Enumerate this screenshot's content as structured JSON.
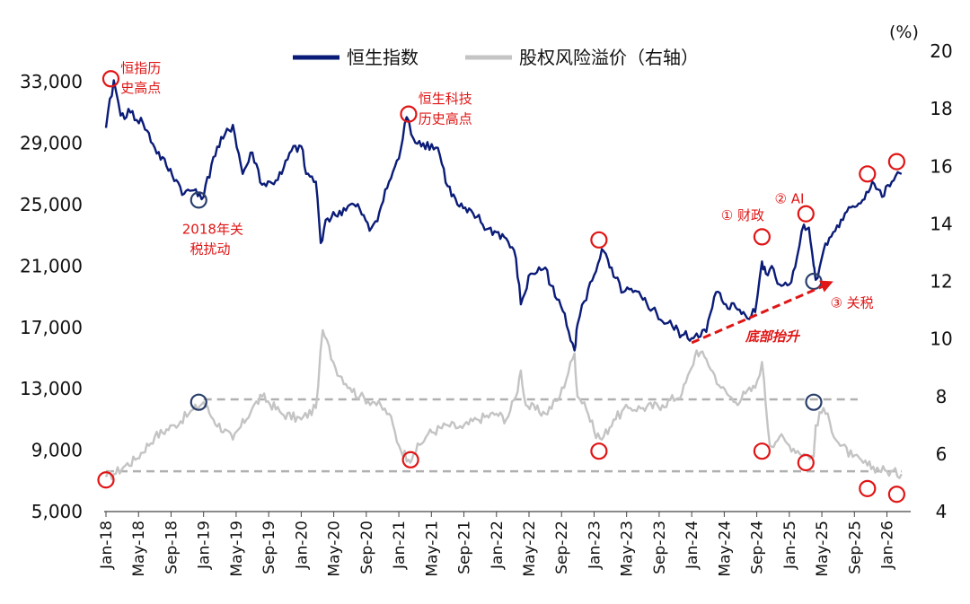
{
  "chart_data": {
    "type": "line",
    "legend": {
      "placement": "top-center"
    },
    "y_left": {
      "ylim": [
        5000,
        35000
      ],
      "ticks": [
        "33,000",
        "29,000",
        "25,000",
        "21,000",
        "17,000",
        "13,000",
        "9,000",
        "5,000"
      ]
    },
    "y_right": {
      "unit_label": "(%)",
      "ylim": [
        4,
        20
      ],
      "ticks": [
        "20",
        "18",
        "16",
        "14",
        "12",
        "10",
        "8",
        "6",
        "4"
      ]
    },
    "x_ticks": [
      "Jan-18",
      "May-18",
      "Sep-18",
      "Jan-19",
      "May-19",
      "Sep-19",
      "Jan-20",
      "May-20",
      "Sep-20",
      "Jan-21",
      "May-21",
      "Sep-21",
      "Jan-22",
      "May-22",
      "Sep-22",
      "Jan-23",
      "May-23",
      "Sep-23",
      "Jan-24",
      "May-24",
      "Sep-24",
      "Jan-25",
      "May-25",
      "Sep-25",
      "Jan-26"
    ],
    "series": [
      {
        "name": "恒生指数",
        "axis": "left",
        "color": "#0b1c78",
        "x": [
          2018.0,
          2018.08,
          2018.15,
          2018.25,
          2018.38,
          2018.5,
          2018.62,
          2018.72,
          2018.8,
          2018.92,
          2019.0,
          2019.1,
          2019.2,
          2019.3,
          2019.4,
          2019.5,
          2019.6,
          2019.7,
          2019.8,
          2019.9,
          2020.0,
          2020.05,
          2020.15,
          2020.2,
          2020.25,
          2020.35,
          2020.5,
          2020.6,
          2020.7,
          2020.8,
          2020.9,
          2021.0,
          2021.08,
          2021.15,
          2021.25,
          2021.4,
          2021.5,
          2021.6,
          2021.7,
          2021.8,
          2021.9,
          2022.0,
          2022.1,
          2022.2,
          2022.25,
          2022.35,
          2022.5,
          2022.6,
          2022.7,
          2022.8,
          2022.83,
          2022.9,
          2023.0,
          2023.08,
          2023.2,
          2023.3,
          2023.4,
          2023.5,
          2023.6,
          2023.7,
          2023.8,
          2023.9,
          2024.0,
          2024.05,
          2024.15,
          2024.25,
          2024.35,
          2024.45,
          2024.55,
          2024.65,
          2024.72,
          2024.76,
          2024.82,
          2024.9,
          2025.0,
          2025.08,
          2025.15,
          2025.2,
          2025.25,
          2025.27,
          2025.35,
          2025.45,
          2025.55,
          2025.65,
          2025.75,
          2025.85,
          2025.95,
          2026.05,
          2026.15
        ],
        "values": [
          30000,
          33100,
          30800,
          31000,
          30300,
          28700,
          27500,
          26600,
          25700,
          26000,
          25500,
          28100,
          29300,
          30200,
          27000,
          28400,
          26300,
          26400,
          27000,
          28500,
          28800,
          27000,
          26500,
          22500,
          24000,
          24300,
          25000,
          24700,
          23300,
          24500,
          26500,
          28000,
          30700,
          29300,
          29000,
          28700,
          26200,
          25000,
          24500,
          24200,
          23400,
          23200,
          22800,
          21500,
          18500,
          20500,
          20900,
          19000,
          17900,
          15500,
          17200,
          18700,
          20400,
          22100,
          20300,
          19300,
          19300,
          18800,
          18200,
          17400,
          17100,
          16500,
          16300,
          16600,
          16700,
          19300,
          18500,
          18300,
          17800,
          18000,
          21300,
          20500,
          21000,
          19800,
          19800,
          21600,
          23700,
          23500,
          21000,
          20100,
          22000,
          23200,
          24000,
          24900,
          25300,
          26500,
          25500,
          26500,
          27000
        ]
      },
      {
        "name": "股权风险溢价（右轴）",
        "axis": "right",
        "color": "#c4c4c4",
        "x": [
          2018.0,
          2018.08,
          2018.2,
          2018.3,
          2018.5,
          2018.7,
          2018.85,
          2019.0,
          2019.1,
          2019.3,
          2019.5,
          2019.6,
          2019.8,
          2020.0,
          2020.15,
          2020.22,
          2020.35,
          2020.5,
          2020.6,
          2020.75,
          2020.9,
          2021.0,
          2021.1,
          2021.15,
          2021.3,
          2021.5,
          2021.65,
          2021.8,
          2022.0,
          2022.1,
          2022.2,
          2022.25,
          2022.3,
          2022.5,
          2022.65,
          2022.8,
          2022.83,
          2022.9,
          2023.0,
          2023.08,
          2023.2,
          2023.35,
          2023.5,
          2023.7,
          2023.9,
          2024.0,
          2024.05,
          2024.15,
          2024.3,
          2024.45,
          2024.55,
          2024.65,
          2024.72,
          2024.8,
          2024.9,
          2025.0,
          2025.15,
          2025.25,
          2025.27,
          2025.35,
          2025.5,
          2025.65,
          2025.8,
          2026.0,
          2026.15
        ],
        "values": [
          5.2,
          5.3,
          5.6,
          5.8,
          6.6,
          7.0,
          7.4,
          7.8,
          7.2,
          6.5,
          7.6,
          8.0,
          7.4,
          7.2,
          7.6,
          10.3,
          9.0,
          8.3,
          8.0,
          7.8,
          7.4,
          6.3,
          5.8,
          6.0,
          6.7,
          7.0,
          6.9,
          7.2,
          7.4,
          7.2,
          8.0,
          8.9,
          7.7,
          7.4,
          8.0,
          9.5,
          8.0,
          7.8,
          6.8,
          6.5,
          7.2,
          7.6,
          7.6,
          7.7,
          8.1,
          9.0,
          9.6,
          9.3,
          8.3,
          7.8,
          8.1,
          8.3,
          9.2,
          6.3,
          6.6,
          6.3,
          6.0,
          5.9,
          7.0,
          7.6,
          6.4,
          5.9,
          5.6,
          5.4,
          5.3
        ]
      }
    ],
    "reference_lines": [
      {
        "axis": "right",
        "value": 7.9,
        "x_range": [
          2019.0,
          2025.7
        ],
        "style": "dashed"
      },
      {
        "axis": "right",
        "value": 5.4,
        "x_range": [
          2018.0,
          2026.15
        ],
        "style": "dashed"
      }
    ],
    "highlight_circles": [
      {
        "x": 2018.05,
        "axis": "left",
        "value": 33200,
        "color": "#e01515"
      },
      {
        "x": 2021.1,
        "axis": "left",
        "value": 30900,
        "color": "#e01515"
      },
      {
        "x": 2023.05,
        "axis": "left",
        "value": 22700,
        "color": "#e01515"
      },
      {
        "x": 2024.72,
        "axis": "left",
        "value": 22900,
        "color": "#e01515"
      },
      {
        "x": 2025.17,
        "axis": "left",
        "value": 24400,
        "color": "#e01515"
      },
      {
        "x": 2025.8,
        "axis": "left",
        "value": 27000,
        "color": "#e01515"
      },
      {
        "x": 2026.1,
        "axis": "left",
        "value": 27800,
        "color": "#e01515"
      },
      {
        "x": 2018.0,
        "axis": "right",
        "value": 5.1,
        "color": "#e01515"
      },
      {
        "x": 2021.12,
        "axis": "right",
        "value": 5.8,
        "color": "#e01515"
      },
      {
        "x": 2023.05,
        "axis": "right",
        "value": 6.1,
        "color": "#e01515"
      },
      {
        "x": 2024.72,
        "axis": "right",
        "value": 6.1,
        "color": "#e01515"
      },
      {
        "x": 2025.17,
        "axis": "right",
        "value": 5.7,
        "color": "#e01515"
      },
      {
        "x": 2025.8,
        "axis": "right",
        "value": 4.8,
        "color": "#e01515"
      },
      {
        "x": 2026.1,
        "axis": "right",
        "value": 4.6,
        "color": "#e01515"
      },
      {
        "x": 2018.95,
        "axis": "left",
        "value": 25300,
        "color": "#2a3f6b"
      },
      {
        "x": 2025.25,
        "axis": "left",
        "value": 20000,
        "color": "#2a3f6b"
      },
      {
        "x": 2025.25,
        "axis": "right",
        "value": 7.8,
        "color": "#2a3f6b"
      },
      {
        "x": 2018.95,
        "axis": "right",
        "value": 7.8,
        "color": "#2a3f6b"
      }
    ],
    "trend_arrow": {
      "axis": "left",
      "from": [
        2024.0,
        16000
      ],
      "to": [
        2025.45,
        20000
      ],
      "color": "#e01515",
      "style": "dashed"
    },
    "annotations": [
      {
        "text": "恒指历",
        "x": 2018.15,
        "value": 33600
      },
      {
        "text": "史高点",
        "x": 2018.15,
        "value": 32300
      },
      {
        "text": "恒生科技",
        "x": 2021.2,
        "value": 31600
      },
      {
        "text": "历史高点",
        "x": 2021.2,
        "value": 30300
      },
      {
        "text": "2018年关",
        "x": 2018.78,
        "value": 23100
      },
      {
        "text": "税扰动",
        "x": 2018.86,
        "value": 21800
      },
      {
        "text": "① 财政",
        "x": 2024.3,
        "value": 24000
      },
      {
        "text": "② AI",
        "x": 2024.85,
        "value": 25100
      },
      {
        "text": "③ 关税",
        "x": 2025.42,
        "value": 18300
      },
      {
        "text": "底部抬升",
        "x": 2024.55,
        "value": 16100
      }
    ]
  }
}
